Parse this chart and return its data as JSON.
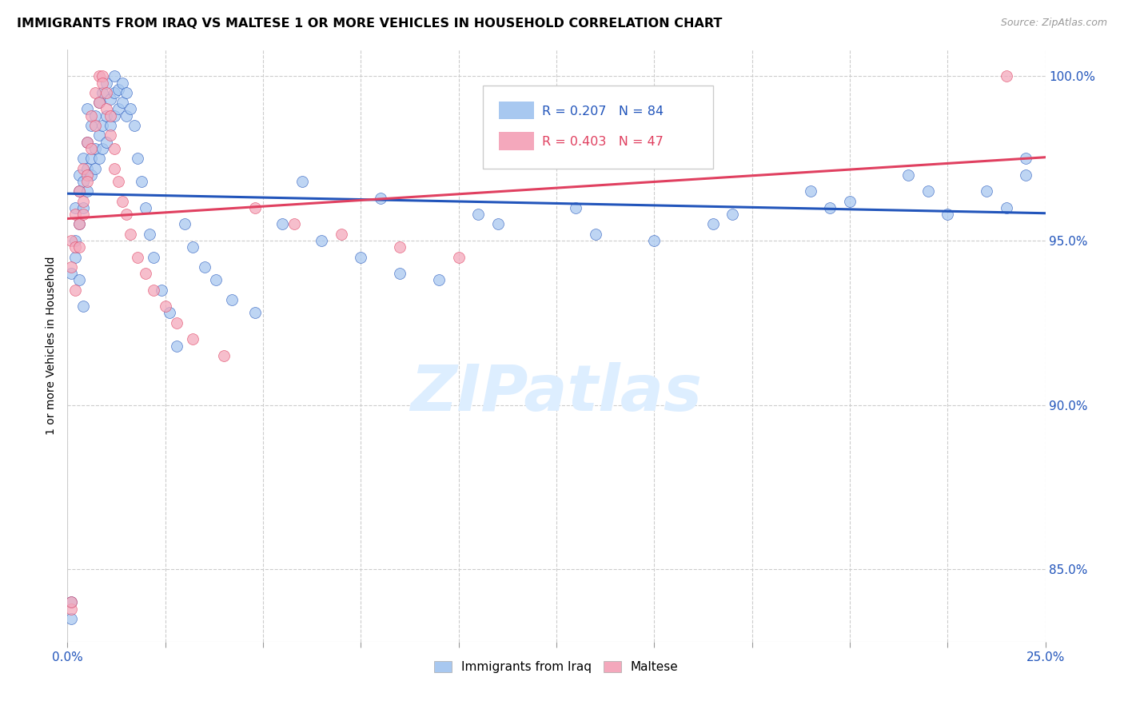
{
  "title": "IMMIGRANTS FROM IRAQ VS MALTESE 1 OR MORE VEHICLES IN HOUSEHOLD CORRELATION CHART",
  "source": "Source: ZipAtlas.com",
  "ylabel": "1 or more Vehicles in Household",
  "legend_iraq": "Immigrants from Iraq",
  "legend_maltese": "Maltese",
  "r_iraq": 0.207,
  "n_iraq": 84,
  "r_maltese": 0.403,
  "n_maltese": 47,
  "color_iraq": "#a8c8f0",
  "color_maltese": "#f4a8bc",
  "color_iraq_line": "#2255bb",
  "color_maltese_line": "#e04060",
  "color_text_blue": "#2255bb",
  "color_text_red": "#e04060",
  "watermark_color": "#ddeeff",
  "xmin": 0.0,
  "xmax": 0.25,
  "ymin": 0.828,
  "ymax": 1.008,
  "yticks": [
    0.85,
    0.9,
    0.95,
    1.0
  ],
  "xtick_labels_show": [
    0.0,
    0.25
  ],
  "xticks_count": 11,
  "iraq_x": [
    0.001,
    0.002,
    0.002,
    0.003,
    0.003,
    0.003,
    0.004,
    0.004,
    0.004,
    0.005,
    0.005,
    0.005,
    0.005,
    0.006,
    0.006,
    0.006,
    0.007,
    0.007,
    0.007,
    0.008,
    0.008,
    0.008,
    0.009,
    0.009,
    0.009,
    0.01,
    0.01,
    0.01,
    0.011,
    0.011,
    0.012,
    0.012,
    0.012,
    0.013,
    0.013,
    0.014,
    0.014,
    0.015,
    0.015,
    0.016,
    0.017,
    0.018,
    0.019,
    0.02,
    0.021,
    0.022,
    0.024,
    0.026,
    0.028,
    0.03,
    0.032,
    0.035,
    0.038,
    0.042,
    0.048,
    0.001,
    0.001,
    0.002,
    0.003,
    0.004,
    0.055,
    0.065,
    0.075,
    0.085,
    0.095,
    0.11,
    0.13,
    0.15,
    0.17,
    0.19,
    0.2,
    0.215,
    0.225,
    0.235,
    0.24,
    0.245,
    0.245,
    0.22,
    0.195,
    0.165,
    0.135,
    0.105,
    0.08,
    0.06
  ],
  "iraq_y": [
    0.94,
    0.95,
    0.96,
    0.955,
    0.965,
    0.97,
    0.96,
    0.968,
    0.975,
    0.965,
    0.972,
    0.98,
    0.99,
    0.97,
    0.975,
    0.985,
    0.972,
    0.978,
    0.988,
    0.975,
    0.982,
    0.992,
    0.978,
    0.985,
    0.995,
    0.98,
    0.988,
    0.998,
    0.985,
    0.993,
    0.988,
    0.995,
    1.0,
    0.99,
    0.996,
    0.992,
    0.998,
    0.988,
    0.995,
    0.99,
    0.985,
    0.975,
    0.968,
    0.96,
    0.952,
    0.945,
    0.935,
    0.928,
    0.918,
    0.955,
    0.948,
    0.942,
    0.938,
    0.932,
    0.928,
    0.835,
    0.84,
    0.945,
    0.938,
    0.93,
    0.955,
    0.95,
    0.945,
    0.94,
    0.938,
    0.955,
    0.96,
    0.95,
    0.958,
    0.965,
    0.962,
    0.97,
    0.958,
    0.965,
    0.96,
    0.97,
    0.975,
    0.965,
    0.96,
    0.955,
    0.952,
    0.958,
    0.963,
    0.968
  ],
  "maltese_x": [
    0.001,
    0.001,
    0.002,
    0.002,
    0.003,
    0.003,
    0.004,
    0.004,
    0.005,
    0.005,
    0.006,
    0.006,
    0.007,
    0.007,
    0.008,
    0.008,
    0.009,
    0.009,
    0.01,
    0.01,
    0.011,
    0.011,
    0.012,
    0.012,
    0.013,
    0.014,
    0.015,
    0.016,
    0.018,
    0.02,
    0.022,
    0.025,
    0.028,
    0.032,
    0.04,
    0.001,
    0.002,
    0.003,
    0.004,
    0.005,
    0.048,
    0.058,
    0.07,
    0.085,
    0.1,
    0.24,
    0.001
  ],
  "maltese_y": [
    0.942,
    0.95,
    0.948,
    0.958,
    0.955,
    0.965,
    0.962,
    0.972,
    0.97,
    0.98,
    0.978,
    0.988,
    0.985,
    0.995,
    0.992,
    1.0,
    1.0,
    0.998,
    0.995,
    0.99,
    0.988,
    0.982,
    0.978,
    0.972,
    0.968,
    0.962,
    0.958,
    0.952,
    0.945,
    0.94,
    0.935,
    0.93,
    0.925,
    0.92,
    0.915,
    0.838,
    0.935,
    0.948,
    0.958,
    0.968,
    0.96,
    0.955,
    0.952,
    0.948,
    0.945,
    1.0,
    0.84
  ]
}
